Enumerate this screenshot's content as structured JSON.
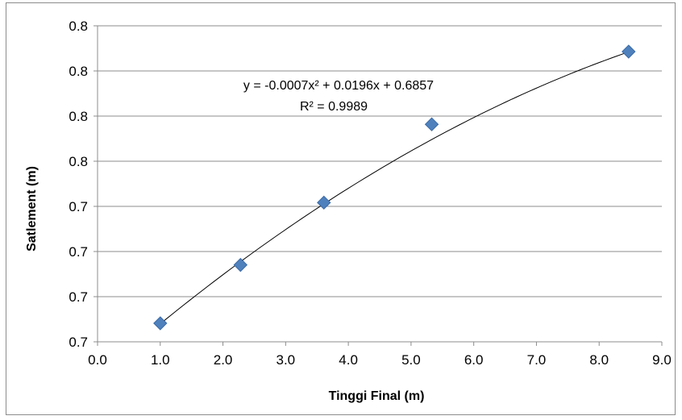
{
  "chart_data": {
    "type": "scatter",
    "title": "",
    "xlabel": "Tinggi Final (m)",
    "ylabel": "Satlement (m)",
    "xlim": [
      0,
      9
    ],
    "x_ticks": [
      "0.0",
      "1.0",
      "2.0",
      "3.0",
      "4.0",
      "5.0",
      "6.0",
      "7.0",
      "8.0",
      "9.0"
    ],
    "y_ticks": [
      "0.7",
      "0.7",
      "0.7",
      "0.7",
      "0.8",
      "0.8",
      "0.8",
      "0.8"
    ],
    "grid": true,
    "legend": "none",
    "marker_color": "#4F81BD",
    "trendline_color": "#000000",
    "series": [
      {
        "points": [
          {
            "x": 1.0,
            "y": 0.7048
          },
          {
            "x": 2.28,
            "y": 0.7256
          },
          {
            "x": 3.61,
            "y": 0.7478
          },
          {
            "x": 5.33,
            "y": 0.7757
          },
          {
            "x": 8.47,
            "y": 0.8016
          }
        ]
      }
    ],
    "trendline": {
      "type": "polynomial",
      "order": 2,
      "coefficients": [
        -0.0007,
        0.0196,
        0.6857
      ],
      "x_range": [
        1.0,
        8.47
      ],
      "equation": "y = -0.0007x² + 0.0196x + 0.6857",
      "r_squared": "R² = 0.9989"
    }
  }
}
